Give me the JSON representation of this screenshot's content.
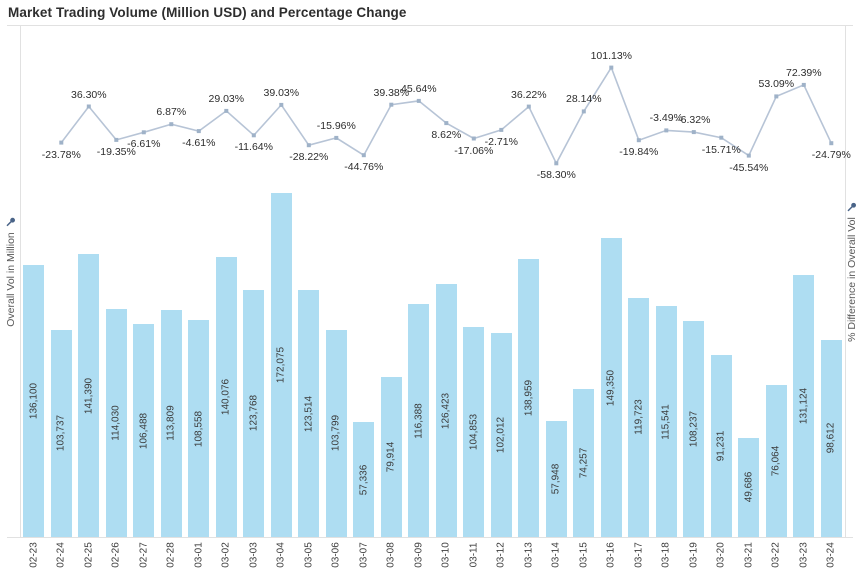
{
  "title": "Market Trading Volume (Million USD) and Percentage Change",
  "left_axis": {
    "label": "Overall Vol in Million",
    "icon": "pin-icon"
  },
  "right_axis": {
    "label": "% Difference in Overall Vol",
    "icon": "pin-icon"
  },
  "colors": {
    "bar": "#aeddf2",
    "line": "#b7c4d6",
    "marker": "#9fb2c8",
    "pin": "#4a6488",
    "border": "#e1e1e1"
  },
  "chart_data": {
    "type": "combo-bar-line",
    "title": "Market Trading Volume (Million USD) and Percentage Change",
    "grid": false,
    "legend": false,
    "categories": [
      "02-23",
      "02-24",
      "02-25",
      "02-26",
      "02-27",
      "02-28",
      "03-01",
      "03-02",
      "03-03",
      "03-04",
      "03-05",
      "03-06",
      "03-07",
      "03-08",
      "03-09",
      "03-10",
      "03-11",
      "03-12",
      "03-13",
      "03-14",
      "03-15",
      "03-16",
      "03-17",
      "03-18",
      "03-19",
      "03-20",
      "03-21",
      "03-22",
      "03-23",
      "03-24"
    ],
    "series": [
      {
        "name": "Overall Vol in Million",
        "type": "bar",
        "axis": "left",
        "approx_axis_max": 175000,
        "values": [
          136100,
          103737,
          141390,
          114030,
          106488,
          113809,
          108558,
          140076,
          123768,
          172075,
          123514,
          103799,
          57336,
          79914,
          116388,
          126423,
          104853,
          102012,
          138959,
          57948,
          74257,
          149350,
          119723,
          115541,
          108237,
          91231,
          49686,
          76064,
          131124,
          98612
        ],
        "labels": [
          "136,100",
          "103,737",
          "141,390",
          "114,030",
          "106,488",
          "113,809",
          "108,558",
          "140,076",
          "123,768",
          "172,075",
          "123,514",
          "103,799",
          "57,336",
          "79,914",
          "116,388",
          "126,423",
          "104,853",
          "102,012",
          "138,959",
          "57,948",
          "74,257",
          "149,350",
          "119,723",
          "115,541",
          "108,237",
          "91,231",
          "49,686",
          "76,064",
          "131,124",
          "98,612"
        ]
      },
      {
        "name": "% Difference in Overall Vol",
        "type": "line",
        "axis": "right",
        "values": [
          null,
          -23.78,
          36.3,
          -19.35,
          -6.61,
          6.87,
          -4.61,
          29.03,
          -11.64,
          39.03,
          -28.22,
          -15.96,
          -44.76,
          39.38,
          45.64,
          8.62,
          -17.06,
          -2.71,
          36.22,
          -58.3,
          28.14,
          101.13,
          -19.84,
          -3.49,
          -6.32,
          -15.71,
          -45.54,
          53.09,
          72.39,
          -24.79
        ],
        "labels": [
          null,
          "-23.78%",
          "36.30%",
          "-19.35%",
          "-6.61%",
          "6.87%",
          "-4.61%",
          "29.03%",
          "-11.64%",
          "39.03%",
          "-28.22%",
          "-15.96%",
          "-44.76%",
          "39.38%",
          "45.64%",
          "8.62%",
          "-17.06%",
          "-2.71%",
          "36.22%",
          "-58.30%",
          "28.14%",
          "101.13%",
          "-19.84%",
          "-3.49%",
          "-6.32%",
          "-15.71%",
          "-45.54%",
          "53.09%",
          "72.39%",
          "-24.79%"
        ],
        "label_sides": [
          null,
          "below",
          "above",
          "below",
          "below",
          "above",
          "below",
          "above",
          "below",
          "above",
          "below",
          "above",
          "below",
          "above",
          "above",
          "below",
          "below",
          "below",
          "above",
          "below",
          "above",
          "above",
          "below",
          "above",
          "above",
          "below",
          "below",
          "above",
          "above",
          "below"
        ]
      }
    ]
  }
}
